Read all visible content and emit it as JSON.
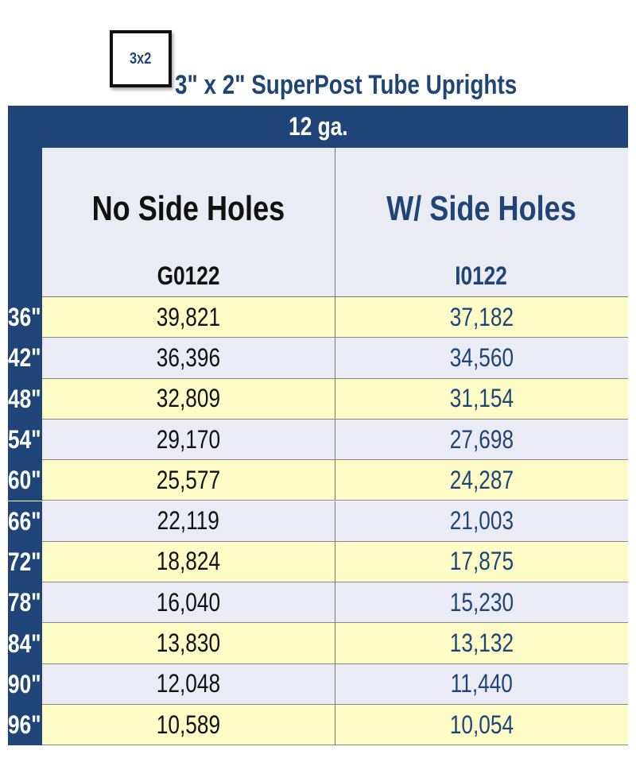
{
  "badge": "3x2",
  "title": "3\" x 2\" SuperPost Tube Uprights",
  "table": {
    "group_header": "12 ga.",
    "columns": [
      {
        "name": "No Side Holes",
        "part": "G0122"
      },
      {
        "name": "W/ Side Holes",
        "part": "I0122"
      }
    ],
    "rows": [
      [
        "36\"",
        "39,821",
        "37,182"
      ],
      [
        "42\"",
        "36,396",
        "34,560"
      ],
      [
        "48\"",
        "32,809",
        "31,154"
      ],
      [
        "54\"",
        "29,170",
        "27,698"
      ],
      [
        "60\"",
        "25,577",
        "24,287"
      ],
      [
        "66\"",
        "22,119",
        "21,003"
      ],
      [
        "72\"",
        "18,824",
        "17,875"
      ],
      [
        "78\"",
        "16,040",
        "15,230"
      ],
      [
        "84\"",
        "13,830",
        "13,132"
      ],
      [
        "90\"",
        "12,048",
        "11,440"
      ],
      [
        "96\"",
        "10,589",
        "10,054"
      ]
    ]
  }
}
